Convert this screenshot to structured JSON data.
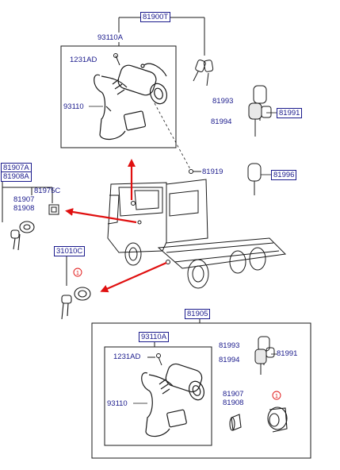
{
  "colors": {
    "line": "#1a1a1a",
    "label_text": "#1a1a8c",
    "arrow": "#e01010",
    "note_marker": "#e01010"
  },
  "labels": {
    "p81900T": "81900T",
    "p93110A_top": "93110A",
    "p1231AD_top": "1231AD",
    "p93110_top": "93110",
    "p81993_top": "81993",
    "p81994_top": "81994",
    "p81991_top": "81991",
    "p81919": "81919",
    "p81996": "81996",
    "p81907A": "81907A",
    "p81908A": "81908A",
    "p81975C": "81975C",
    "p81907_left": "81907",
    "p81908_left": "81908",
    "p31010C": "31010C",
    "p81905": "81905",
    "p93110A_bot": "93110A",
    "p1231AD_bot": "1231AD",
    "p93110_bot": "93110",
    "p81993_bot": "81993",
    "p81994_bot": "81994",
    "p81991_bot": "81991",
    "p81907_bot": "81907",
    "p81908_bot": "81908"
  },
  "note_markers": [
    "1",
    "1"
  ]
}
